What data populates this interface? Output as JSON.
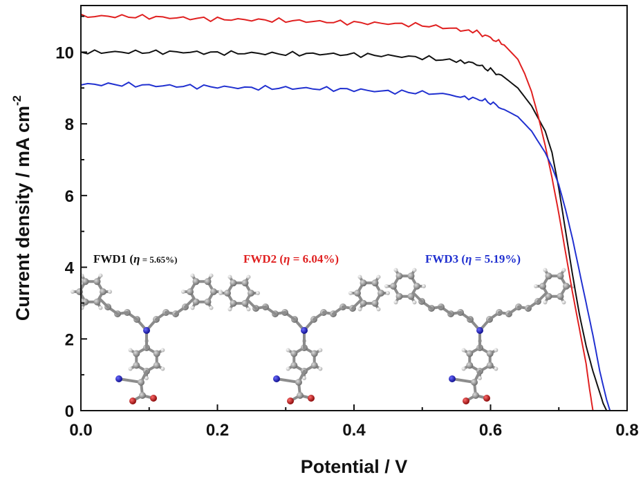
{
  "chart_data": {
    "type": "line",
    "title": "",
    "xlabel": "Potential / V",
    "ylabel": "Current density / mA cm",
    "ylabel_sup": "-2",
    "xlim": [
      0.0,
      0.8
    ],
    "ylim": [
      0,
      11.3
    ],
    "xticks": [
      0.0,
      0.2,
      0.4,
      0.6,
      0.8
    ],
    "xtick_labels": [
      "0.0",
      "0.2",
      "0.4",
      "0.6",
      "0.8"
    ],
    "yticks": [
      0,
      2,
      4,
      6,
      8,
      10
    ],
    "ytick_labels": [
      "0",
      "2",
      "4",
      "6",
      "8",
      "10"
    ],
    "grid": false,
    "legend": "none",
    "series": [
      {
        "name": "FWD1",
        "color": "#111111",
        "x": [
          0.0,
          0.05,
          0.1,
          0.15,
          0.2,
          0.25,
          0.3,
          0.35,
          0.4,
          0.45,
          0.5,
          0.55,
          0.58,
          0.6,
          0.62,
          0.64,
          0.66,
          0.68,
          0.69,
          0.7,
          0.71,
          0.72,
          0.73,
          0.74,
          0.75,
          0.76,
          0.765,
          0.77
        ],
        "y": [
          10.0,
          10.0,
          10.0,
          10.0,
          9.98,
          9.97,
          9.95,
          9.95,
          9.93,
          9.9,
          9.85,
          9.75,
          9.65,
          9.5,
          9.3,
          9.0,
          8.5,
          7.8,
          7.2,
          6.2,
          5.0,
          3.8,
          2.7,
          1.8,
          1.1,
          0.5,
          0.2,
          0.0
        ]
      },
      {
        "name": "FWD2",
        "color": "#e02020",
        "x": [
          0.0,
          0.05,
          0.1,
          0.15,
          0.2,
          0.25,
          0.3,
          0.35,
          0.4,
          0.45,
          0.5,
          0.55,
          0.58,
          0.6,
          0.62,
          0.64,
          0.65,
          0.66,
          0.67,
          0.68,
          0.69,
          0.7,
          0.71,
          0.72,
          0.73,
          0.74,
          0.745,
          0.75
        ],
        "y": [
          11.0,
          11.0,
          10.98,
          10.95,
          10.92,
          10.9,
          10.88,
          10.85,
          10.82,
          10.8,
          10.75,
          10.65,
          10.55,
          10.4,
          10.2,
          9.8,
          9.4,
          8.9,
          8.2,
          7.4,
          6.5,
          5.5,
          4.4,
          3.3,
          2.3,
          1.3,
          0.6,
          0.0
        ]
      },
      {
        "name": "FWD3",
        "color": "#2030d0",
        "x": [
          0.0,
          0.05,
          0.1,
          0.15,
          0.2,
          0.25,
          0.3,
          0.35,
          0.4,
          0.45,
          0.5,
          0.55,
          0.58,
          0.6,
          0.62,
          0.64,
          0.66,
          0.68,
          0.69,
          0.7,
          0.71,
          0.72,
          0.73,
          0.74,
          0.75,
          0.76,
          0.77,
          0.775
        ],
        "y": [
          9.1,
          9.1,
          9.07,
          9.05,
          9.03,
          9.0,
          9.0,
          8.98,
          8.95,
          8.9,
          8.87,
          8.8,
          8.7,
          8.6,
          8.4,
          8.2,
          7.8,
          7.2,
          6.8,
          6.3,
          5.6,
          4.8,
          3.9,
          3.0,
          2.1,
          1.1,
          0.3,
          0.0
        ]
      }
    ],
    "annotations": [
      {
        "label": "FWD1",
        "open": " (",
        "eta": "η",
        "value": " = 5.65%)",
        "color": "#111111"
      },
      {
        "label": "FWD2",
        "open": " (",
        "eta": "η",
        "value": " = 6.04%)",
        "color": "#e02020"
      },
      {
        "label": "FWD3",
        "open": " (",
        "eta": "η",
        "value": " = 5.19%)",
        "color": "#2030d0"
      }
    ]
  }
}
